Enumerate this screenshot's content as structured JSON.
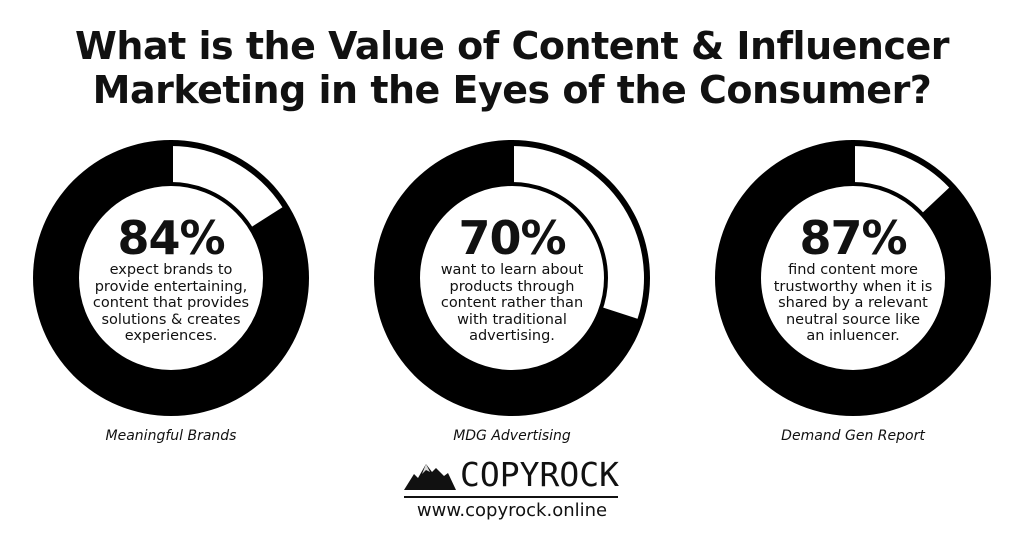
{
  "title": {
    "line1": "What is the Value of Content & Influencer",
    "line2": "Marketing in the Eyes of the Consumer?"
  },
  "colors": {
    "ring": "#000000",
    "remainder": "#ffffff",
    "text": "#111111"
  },
  "chart_data": {
    "type": "pie",
    "variant": "donut",
    "series": [
      {
        "value": 84,
        "label": "84%",
        "description": [
          "expect brands to",
          "provide entertaining,",
          "content that provides",
          "solutions & creates",
          "experiences."
        ],
        "source": "Meaningful Brands"
      },
      {
        "value": 70,
        "label": "70%",
        "description": [
          "want to learn about",
          "products through",
          "content rather than",
          "with traditional",
          "advertising."
        ],
        "source": "MDG Advertising"
      },
      {
        "value": 87,
        "label": "87%",
        "description": [
          "find content more",
          "trustworthy when it is",
          "shared by a relevant",
          "neutral source like",
          "an inluencer."
        ],
        "source": "Demand Gen Report"
      }
    ]
  },
  "brand": {
    "logo_icon": "mountain-icon",
    "name": "COPYROCK",
    "url": "www.copyrock.online"
  }
}
